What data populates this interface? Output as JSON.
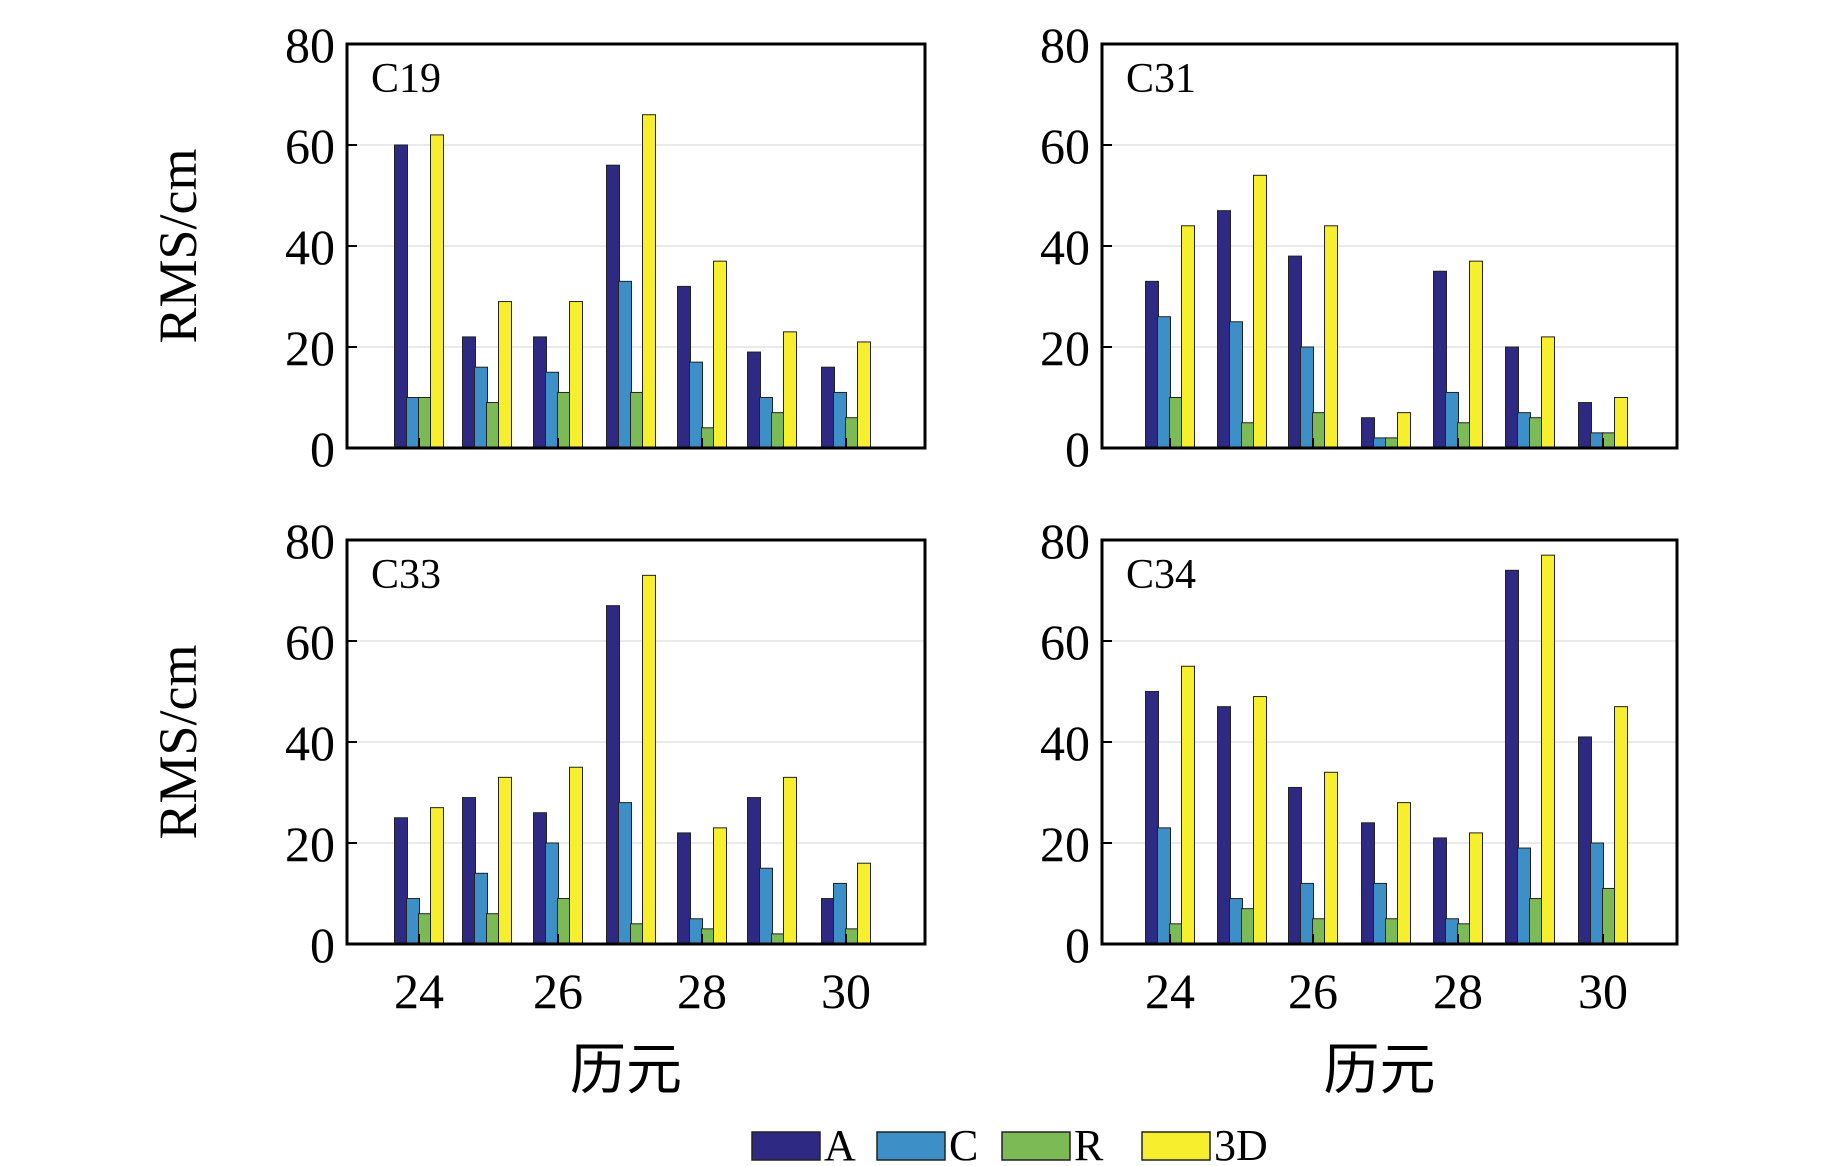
{
  "colors": {
    "A": "#2e2a83",
    "C": "#3d8fc8",
    "R": "#7cba55",
    "3D": "#f7ee2e"
  },
  "legend": [
    "A",
    "C",
    "R",
    "3D"
  ],
  "chart_data": [
    {
      "type": "bar",
      "title": "C19",
      "xlabel": "",
      "ylabel": "RMS/cm",
      "categories": [
        24,
        25,
        26,
        27,
        28,
        29,
        30
      ],
      "xticks": [
        "24",
        "26",
        "28",
        "30"
      ],
      "yticks": [
        "0",
        "20",
        "40",
        "60",
        "80"
      ],
      "ylim": [
        0,
        80
      ],
      "series": [
        {
          "name": "A",
          "values": [
            60,
            22,
            22,
            56,
            32,
            19,
            16
          ]
        },
        {
          "name": "C",
          "values": [
            10,
            16,
            15,
            33,
            17,
            10,
            11
          ]
        },
        {
          "name": "R",
          "values": [
            10,
            9,
            11,
            11,
            4,
            7,
            6
          ]
        },
        {
          "name": "3D",
          "values": [
            62,
            29,
            29,
            66,
            37,
            23,
            21
          ]
        }
      ]
    },
    {
      "type": "bar",
      "title": "C31",
      "xlabel": "",
      "ylabel": "",
      "categories": [
        24,
        25,
        26,
        27,
        28,
        29,
        30
      ],
      "xticks": [
        "24",
        "26",
        "28",
        "30"
      ],
      "yticks": [
        "0",
        "20",
        "40",
        "60",
        "80"
      ],
      "ylim": [
        0,
        80
      ],
      "series": [
        {
          "name": "A",
          "values": [
            33,
            47,
            38,
            6,
            35,
            20,
            9
          ]
        },
        {
          "name": "C",
          "values": [
            26,
            25,
            20,
            2,
            11,
            7,
            3
          ]
        },
        {
          "name": "R",
          "values": [
            10,
            5,
            7,
            2,
            5,
            6,
            3
          ]
        },
        {
          "name": "3D",
          "values": [
            44,
            54,
            44,
            7,
            37,
            22,
            10
          ]
        }
      ]
    },
    {
      "type": "bar",
      "title": "C33",
      "xlabel": "历元",
      "ylabel": "RMS/cm",
      "categories": [
        24,
        25,
        26,
        27,
        28,
        29,
        30
      ],
      "xticks": [
        "24",
        "26",
        "28",
        "30"
      ],
      "yticks": [
        "0",
        "20",
        "40",
        "60",
        "80"
      ],
      "ylim": [
        0,
        80
      ],
      "series": [
        {
          "name": "A",
          "values": [
            25,
            29,
            26,
            67,
            22,
            29,
            9
          ]
        },
        {
          "name": "C",
          "values": [
            9,
            14,
            20,
            28,
            5,
            15,
            12
          ]
        },
        {
          "name": "R",
          "values": [
            6,
            6,
            9,
            4,
            3,
            2,
            3
          ]
        },
        {
          "name": "3D",
          "values": [
            27,
            33,
            35,
            73,
            23,
            33,
            16
          ]
        }
      ]
    },
    {
      "type": "bar",
      "title": "C34",
      "xlabel": "历元",
      "ylabel": "",
      "categories": [
        24,
        25,
        26,
        27,
        28,
        29,
        30
      ],
      "xticks": [
        "24",
        "26",
        "28",
        "30"
      ],
      "yticks": [
        "0",
        "20",
        "40",
        "60",
        "80"
      ],
      "ylim": [
        0,
        80
      ],
      "series": [
        {
          "name": "A",
          "values": [
            50,
            47,
            31,
            24,
            21,
            74,
            41
          ]
        },
        {
          "name": "C",
          "values": [
            23,
            9,
            12,
            12,
            5,
            19,
            20
          ]
        },
        {
          "name": "R",
          "values": [
            4,
            7,
            5,
            5,
            4,
            9,
            11
          ]
        },
        {
          "name": "3D",
          "values": [
            55,
            49,
            34,
            28,
            22,
            77,
            47
          ]
        }
      ]
    }
  ]
}
